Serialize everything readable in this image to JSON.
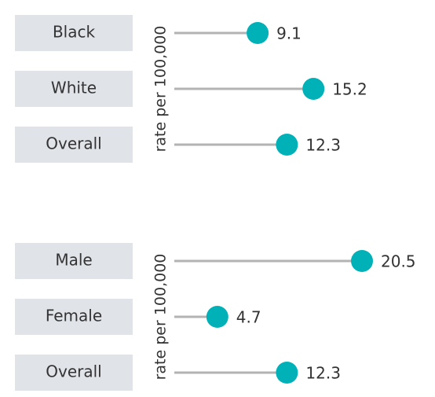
{
  "chart_data": [
    {
      "type": "lollipop",
      "y_label": "rate per 100,000",
      "categories": [
        "Black",
        "White",
        "Overall"
      ],
      "values": [
        9.1,
        15.2,
        12.3
      ],
      "color": "#00b2b8",
      "stem_color": "#b3b3b3"
    },
    {
      "type": "lollipop",
      "y_label": "rate per 100,000",
      "categories": [
        "Male",
        "Female",
        "Overall"
      ],
      "values": [
        20.5,
        4.7,
        12.3
      ],
      "color": "#00b2b8",
      "stem_color": "#b3b3b3"
    }
  ]
}
